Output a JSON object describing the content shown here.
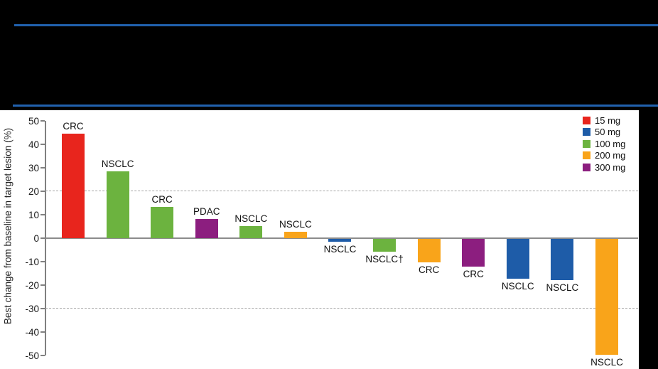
{
  "banner": {
    "background": "#000000",
    "divider_color": "#2161AE"
  },
  "chart_data": {
    "type": "bar",
    "subtype": "waterfall",
    "title": "",
    "xlabel": "",
    "ylabel": "Best change from baseline in target lesion (%)",
    "ylim": [
      -50,
      50
    ],
    "y_ticks": [
      50,
      40,
      30,
      20,
      10,
      0,
      -10,
      -20,
      -30,
      -40,
      -50
    ],
    "reference_lines_dashed": [
      20,
      -30
    ],
    "zero_baseline": true,
    "legend_position": "top-right",
    "legend": [
      {
        "label": "15 mg",
        "color": "#E8251D"
      },
      {
        "label": "50 mg",
        "color": "#1E5CA8"
      },
      {
        "label": "100 mg",
        "color": "#6CB33F"
      },
      {
        "label": "200 mg",
        "color": "#F9A41A"
      },
      {
        "label": "300 mg",
        "color": "#8C1E7F"
      }
    ],
    "bars": [
      {
        "label": "CRC",
        "dose": "15 mg",
        "value": 44.5
      },
      {
        "label": "NSCLC",
        "dose": "100 mg",
        "value": 28.5
      },
      {
        "label": "CRC",
        "dose": "100 mg",
        "value": 13.3
      },
      {
        "label": "PDAC",
        "dose": "300 mg",
        "value": 8.2
      },
      {
        "label": "NSCLC",
        "dose": "100 mg",
        "value": 5.2
      },
      {
        "label": "NSCLC",
        "dose": "200 mg",
        "value": 2.7
      },
      {
        "label": "NSCLC",
        "dose": "50 mg",
        "value": -1.2
      },
      {
        "label": "NSCLC†",
        "dose": "100 mg",
        "value": -5.5
      },
      {
        "label": "CRC",
        "dose": "200 mg",
        "value": -10
      },
      {
        "label": "CRC",
        "dose": "300 mg",
        "value": -11.8
      },
      {
        "label": "NSCLC",
        "dose": "50 mg",
        "value": -17
      },
      {
        "label": "NSCLC",
        "dose": "50 mg",
        "value": -17.6
      },
      {
        "label": "NSCLC",
        "dose": "200 mg",
        "value": -49.5
      }
    ],
    "axis_color": "#808080",
    "grid": false
  }
}
